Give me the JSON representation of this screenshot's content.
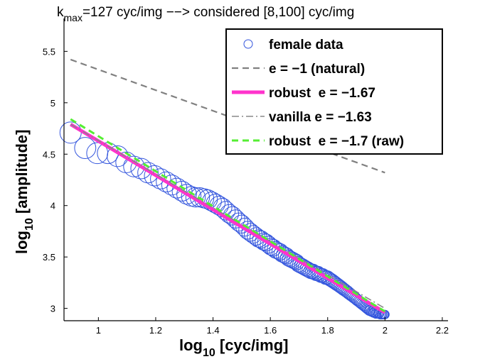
{
  "chart_data": {
    "type": "scatter",
    "title": {
      "prefix": "k",
      "subscript": "max",
      "suffix": "=127 cyc/img −−> considered [8,100] cyc/img"
    },
    "xlabel": {
      "base": "log",
      "subscript": "10",
      "rest": " [cyc/img]"
    },
    "ylabel": {
      "base": "log",
      "subscript": "10",
      "rest": " [amplitude]"
    },
    "xlim": [
      0.88,
      2.22
    ],
    "ylim": [
      2.88,
      5.82
    ],
    "xticks": [
      1,
      1.2,
      1.4,
      1.6,
      1.8,
      2,
      2.2
    ],
    "xtick_labels": [
      "1",
      "1.2",
      "1.4",
      "1.6",
      "1.8",
      "2",
      "2.2"
    ],
    "yticks": [
      3,
      3.5,
      4,
      4.5,
      5,
      5.5
    ],
    "ytick_labels": [
      "3",
      "3.5",
      "4",
      "4.5",
      "5",
      "5.5"
    ],
    "grid": false,
    "legend_position": "top-right",
    "series": [
      {
        "name": "female data",
        "kind": "scatter",
        "color": "#3355dd",
        "x": [
          0.903,
          0.954,
          0.996,
          1.033,
          1.067,
          1.097,
          1.124,
          1.149,
          1.173,
          1.196,
          1.217,
          1.237,
          1.256,
          1.274,
          1.292,
          1.308,
          1.324,
          1.339,
          1.354,
          1.369,
          1.382,
          1.396,
          1.409,
          1.421,
          1.433,
          1.445,
          1.457,
          1.468,
          1.479,
          1.49,
          1.5,
          1.511,
          1.521,
          1.531,
          1.54,
          1.55,
          1.559,
          1.568,
          1.577,
          1.585,
          1.594,
          1.602,
          1.61,
          1.618,
          1.626,
          1.634,
          1.641,
          1.649,
          1.656,
          1.663,
          1.67,
          1.677,
          1.684,
          1.691,
          1.698,
          1.704,
          1.711,
          1.717,
          1.723,
          1.73,
          1.736,
          1.742,
          1.748,
          1.754,
          1.76,
          1.766,
          1.771,
          1.777,
          1.782,
          1.788,
          1.793,
          1.799,
          1.804,
          1.809,
          1.815,
          1.82,
          1.825,
          1.83,
          1.835,
          1.84,
          1.845,
          1.85,
          1.854,
          1.859,
          1.864,
          1.869,
          1.873,
          1.878,
          1.882,
          1.887,
          1.891,
          1.896,
          1.9,
          1.904,
          1.909,
          1.913,
          1.917,
          1.921,
          1.926,
          1.93,
          1.934,
          1.938,
          1.942,
          1.946,
          1.95,
          1.954,
          1.958,
          1.961,
          1.965,
          1.969,
          1.973,
          1.977,
          1.98,
          1.984,
          1.988,
          1.991,
          1.995,
          1.998,
          2.0
        ],
        "y": [
          4.71,
          4.56,
          4.51,
          4.51,
          4.48,
          4.42,
          4.38,
          4.36,
          4.32,
          4.29,
          4.26,
          4.23,
          4.2,
          4.17,
          4.14,
          4.11,
          4.09,
          4.08,
          4.08,
          4.07,
          4.06,
          4.04,
          4.02,
          4.0,
          3.98,
          3.95,
          3.92,
          3.9,
          3.87,
          3.84,
          3.82,
          3.79,
          3.76,
          3.74,
          3.72,
          3.7,
          3.68,
          3.67,
          3.65,
          3.64,
          3.62,
          3.6,
          3.59,
          3.57,
          3.56,
          3.55,
          3.53,
          3.52,
          3.51,
          3.49,
          3.48,
          3.47,
          3.46,
          3.45,
          3.43,
          3.42,
          3.41,
          3.4,
          3.39,
          3.38,
          3.37,
          3.36,
          3.36,
          3.35,
          3.34,
          3.34,
          3.33,
          3.32,
          3.32,
          3.31,
          3.3,
          3.3,
          3.29,
          3.28,
          3.27,
          3.26,
          3.25,
          3.24,
          3.23,
          3.22,
          3.21,
          3.2,
          3.19,
          3.18,
          3.17,
          3.16,
          3.15,
          3.14,
          3.13,
          3.12,
          3.11,
          3.1,
          3.09,
          3.08,
          3.07,
          3.06,
          3.05,
          3.04,
          3.03,
          3.02,
          3.01,
          3.0,
          2.99,
          2.98,
          2.98,
          2.97,
          2.97,
          2.96,
          2.96,
          2.95,
          2.95,
          2.95,
          2.95,
          2.94,
          2.94,
          2.94,
          2.94,
          2.94,
          2.94
        ]
      },
      {
        "name": "e = −1 (natural)",
        "kind": "line",
        "style": "dashed",
        "color": "#808080",
        "x": [
          0.903,
          2.0
        ],
        "y": [
          5.42,
          4.32
        ]
      },
      {
        "name": "robust  e = −1.67",
        "kind": "line",
        "style": "solid",
        "color": "#ff33cc",
        "x": [
          0.903,
          2.0
        ],
        "y": [
          4.79,
          2.96
        ]
      },
      {
        "name": "vanilla e = −1.63",
        "kind": "line",
        "style": "dashdot",
        "color": "#888888",
        "x": [
          0.903,
          2.0
        ],
        "y": [
          4.79,
          3.0
        ]
      },
      {
        "name": "robust  e = −1.7 (raw)",
        "kind": "line",
        "style": "dashed",
        "color": "#55ee33",
        "x": [
          0.903,
          2.0
        ],
        "y": [
          4.84,
          2.97
        ]
      }
    ],
    "legend_labels": [
      "female data",
      "e = −1 (natural)",
      "robust  e = −1.67",
      "vanilla e = −1.63",
      "robust  e = −1.7 (raw)"
    ]
  }
}
